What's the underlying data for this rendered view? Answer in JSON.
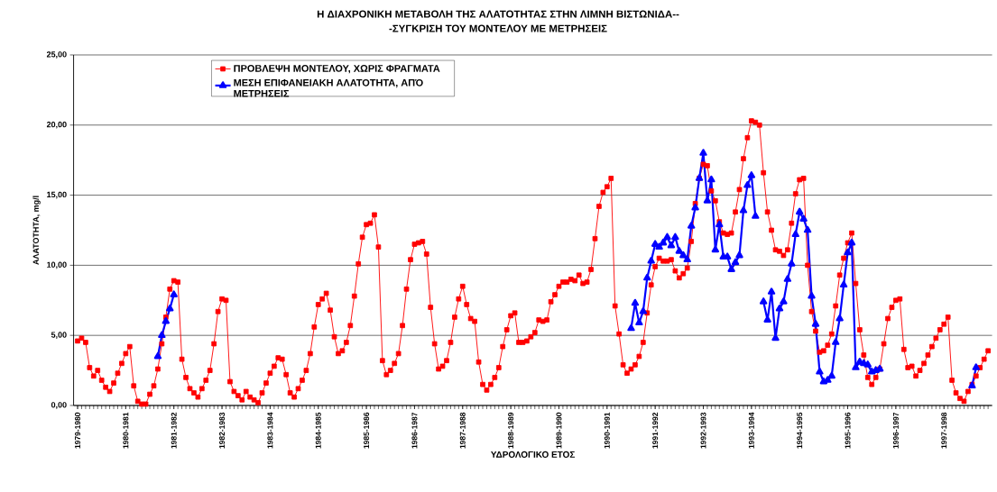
{
  "chart_data": {
    "type": "line",
    "title": "Η  ΔΙΑΧΡΟΝΙΚΗ ΜΕΤΑΒΟΛΗ ΤΗΣ ΑΛΑΤΟΤΗΤΑΣ ΣΤΗΝ ΛΙΜΝΗ ΒΙΣΤΩΝΙΔΑ--",
    "subtitle": "-ΣΥΓΚΡΙΣΗ ΤΟΥ ΜΟΝΤΕΛΟΥ   ΜΕ ΜΕΤΡΗΣΕΙΣ",
    "xlabel": "ΥΔΡΟΛΟΓΙΚΟ  ΕΤΟΣ",
    "ylabel": "ΑΛΑΤΟΤΗΤΑ, mg/l",
    "categories": [
      "1979-1980",
      null,
      null,
      null,
      null,
      null,
      null,
      null,
      null,
      null,
      null,
      null,
      "1980-1981",
      null,
      null,
      null,
      null,
      null,
      null,
      null,
      null,
      null,
      null,
      null,
      "1981-1982",
      null,
      null,
      null,
      null,
      null,
      null,
      null,
      null,
      null,
      null,
      null,
      "1982-1983",
      null,
      null,
      null,
      null,
      null,
      null,
      null,
      null,
      null,
      null,
      null,
      "1983-1984",
      null,
      null,
      null,
      null,
      null,
      null,
      null,
      null,
      null,
      null,
      null,
      "1984-1985",
      null,
      null,
      null,
      null,
      null,
      null,
      null,
      null,
      null,
      null,
      null,
      "1985-1986",
      null,
      null,
      null,
      null,
      null,
      null,
      null,
      null,
      null,
      null,
      null,
      "1986-1987",
      null,
      null,
      null,
      null,
      null,
      null,
      null,
      null,
      null,
      null,
      null,
      "1987-1988",
      null,
      null,
      null,
      null,
      null,
      null,
      null,
      null,
      null,
      null,
      null,
      "1988-1989",
      null,
      null,
      null,
      null,
      null,
      null,
      null,
      null,
      null,
      null,
      null,
      "1989-1990",
      null,
      null,
      null,
      null,
      null,
      null,
      null,
      null,
      null,
      null,
      null,
      "1990-1991",
      null,
      null,
      null,
      null,
      null,
      null,
      null,
      null,
      null,
      null,
      null,
      "1991-1992",
      null,
      null,
      null,
      null,
      null,
      null,
      null,
      null,
      null,
      null,
      null,
      "1992-1993",
      null,
      null,
      null,
      null,
      null,
      null,
      null,
      null,
      null,
      null,
      null,
      "1993-1994",
      null,
      null,
      null,
      null,
      null,
      null,
      null,
      null,
      null,
      null,
      null,
      "1994-1995",
      null,
      null,
      null,
      null,
      null,
      null,
      null,
      null,
      null,
      null,
      null,
      "1995-1996",
      null,
      null,
      null,
      null,
      null,
      null,
      null,
      null,
      null,
      null,
      null,
      "1996-1997",
      null,
      null,
      null,
      null,
      null,
      null,
      null,
      null,
      null,
      null,
      null,
      "1997-1998",
      null,
      null,
      null,
      null,
      null,
      null,
      null,
      null,
      null,
      null,
      null
    ],
    "series": [
      {
        "name": "ΠΡΟΒΛΕΨΗ ΜΟΝΤΕΛΟΥ, ΧΩΡΙΣ ΦΡΑΓΜΑΤΑ",
        "color": "#ff0000",
        "marker": "square",
        "values": [
          4.6,
          4.8,
          4.5,
          2.7,
          2.1,
          2.5,
          1.8,
          1.3,
          1.0,
          1.6,
          2.3,
          3.0,
          3.7,
          4.2,
          1.4,
          0.3,
          0.1,
          0.1,
          0.8,
          1.4,
          2.6,
          4.4,
          6.3,
          8.3,
          8.9,
          8.8,
          3.3,
          2.0,
          1.2,
          0.9,
          0.6,
          1.2,
          1.8,
          2.5,
          4.4,
          6.7,
          7.6,
          7.5,
          1.7,
          1.0,
          0.7,
          0.4,
          1.0,
          0.6,
          0.4,
          0.2,
          0.9,
          1.6,
          2.3,
          2.8,
          3.4,
          3.3,
          2.2,
          0.9,
          0.6,
          1.2,
          1.8,
          2.5,
          3.7,
          5.6,
          7.2,
          7.6,
          8.0,
          6.8,
          4.9,
          3.7,
          3.9,
          4.5,
          5.7,
          7.8,
          10.1,
          12.0,
          12.9,
          13.0,
          13.6,
          11.3,
          3.2,
          2.2,
          2.5,
          3.0,
          3.7,
          5.7,
          8.3,
          10.4,
          11.5,
          11.6,
          11.7,
          10.8,
          7.0,
          4.4,
          2.6,
          2.8,
          3.2,
          4.5,
          6.3,
          7.6,
          8.5,
          7.2,
          6.2,
          6.0,
          3.1,
          1.5,
          1.1,
          1.5,
          2.0,
          2.7,
          4.2,
          5.4,
          6.4,
          6.6,
          4.5,
          4.5,
          4.6,
          4.9,
          5.2,
          6.1,
          6.0,
          6.1,
          7.4,
          7.9,
          8.5,
          8.8,
          8.8,
          9.0,
          8.9,
          9.3,
          8.7,
          8.8,
          9.7,
          11.9,
          14.2,
          15.2,
          15.6,
          16.2,
          7.1,
          5.1,
          2.9,
          2.3,
          2.6,
          2.9,
          3.5,
          4.5,
          6.6,
          8.6,
          9.9,
          10.5,
          10.3,
          10.3,
          10.4,
          9.6,
          9.1,
          9.4,
          9.8,
          11.7,
          14.4,
          16.2,
          17.2,
          17.1,
          15.3,
          14.6,
          13.1,
          12.3,
          12.2,
          12.3,
          13.8,
          15.4,
          17.6,
          19.1,
          20.3,
          20.2,
          20.0,
          16.6,
          13.8,
          12.5,
          11.1,
          11.0,
          10.7,
          11.1,
          13.0,
          15.1,
          16.1,
          16.2,
          10.0,
          6.7,
          5.3,
          3.8,
          3.9,
          4.3,
          5.1,
          7.1,
          9.3,
          10.5,
          11.6,
          12.3,
          8.7,
          5.4,
          3.6,
          2.0,
          1.5,
          2.0,
          2.6,
          4.4,
          6.2,
          7.0,
          7.5,
          7.6,
          4.0,
          2.7,
          2.8,
          2.1,
          2.5,
          3.0,
          3.6,
          4.2,
          4.8,
          5.4,
          5.8,
          6.3,
          1.8,
          0.9,
          0.5,
          0.3,
          1.0,
          1.5,
          2.1,
          2.7,
          3.3,
          3.9
        ]
      },
      {
        "name": "ΜΕΣΗ  ΕΠΙΦΑΝΕΙΑΚΗ  ΑΛΑΤΟΤΗΤΑ,  ΑΠΌ ΜΕΤΡΗΣΕΙΣ",
        "color": "#0000ff",
        "marker": "triangle",
        "values": [
          null,
          null,
          null,
          null,
          null,
          null,
          null,
          null,
          null,
          null,
          null,
          null,
          null,
          null,
          null,
          null,
          null,
          null,
          null,
          null,
          3.5,
          5.0,
          6.0,
          6.9,
          7.9,
          null,
          null,
          null,
          null,
          null,
          null,
          null,
          null,
          null,
          null,
          null,
          null,
          null,
          null,
          null,
          null,
          null,
          null,
          null,
          null,
          null,
          null,
          null,
          null,
          null,
          null,
          null,
          null,
          null,
          null,
          null,
          null,
          null,
          null,
          null,
          null,
          null,
          null,
          null,
          null,
          null,
          null,
          null,
          null,
          null,
          null,
          null,
          null,
          null,
          null,
          null,
          null,
          null,
          null,
          null,
          null,
          null,
          null,
          null,
          null,
          null,
          null,
          null,
          null,
          null,
          null,
          null,
          null,
          null,
          null,
          null,
          null,
          null,
          null,
          null,
          null,
          null,
          null,
          null,
          null,
          null,
          null,
          null,
          null,
          null,
          null,
          null,
          null,
          null,
          null,
          null,
          null,
          null,
          null,
          null,
          null,
          null,
          null,
          null,
          null,
          null,
          null,
          null,
          null,
          null,
          null,
          null,
          null,
          null,
          null,
          null,
          null,
          null,
          5.5,
          7.3,
          5.9,
          6.7,
          9.1,
          10.3,
          11.5,
          11.3,
          11.6,
          12.0,
          11.4,
          12.0,
          11.0,
          10.7,
          10.4,
          12.8,
          14.1,
          16.2,
          18.0,
          14.6,
          16.1,
          11.1,
          12.9,
          10.6,
          10.6,
          9.7,
          10.2,
          10.7,
          13.9,
          15.7,
          16.4,
          13.5,
          null,
          7.4,
          6.1,
          8.1,
          4.8,
          6.9,
          7.4,
          9.0,
          10.1,
          12.2,
          13.8,
          13.3,
          12.5,
          7.8,
          5.8,
          2.4,
          1.7,
          1.8,
          2.1,
          4.5,
          6.2,
          8.6,
          10.9,
          11.6,
          2.7,
          3.1,
          3.0,
          2.9,
          2.4,
          2.5,
          2.6,
          null,
          null,
          null,
          null,
          null,
          null,
          null,
          null,
          null,
          null,
          null,
          null,
          null,
          null,
          null,
          null,
          null,
          null,
          null,
          null,
          null,
          null,
          1.4,
          2.7,
          null,
          null,
          null
        ]
      }
    ],
    "ylim": [
      0,
      25
    ],
    "yticks": [
      {
        "value": 0,
        "label": "0,00"
      },
      {
        "value": 5,
        "label": "5,00"
      },
      {
        "value": 10,
        "label": "10,00"
      },
      {
        "value": 15,
        "label": "15,00"
      },
      {
        "value": 20,
        "label": "20,00"
      },
      {
        "value": 25,
        "label": "25,00"
      }
    ],
    "grid": "y",
    "legend": "top left",
    "line_style": "solid"
  }
}
